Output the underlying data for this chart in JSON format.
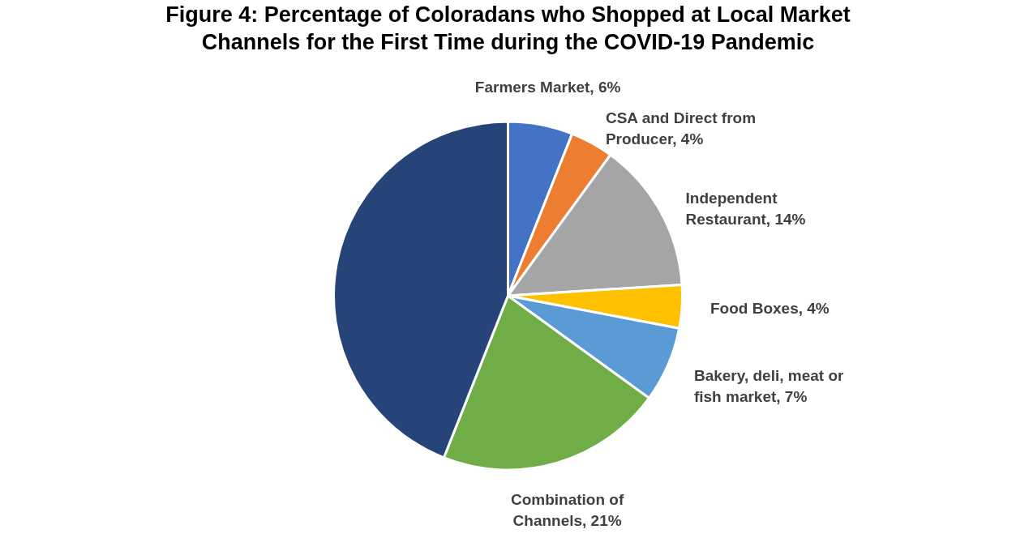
{
  "chart_data": {
    "type": "pie",
    "title": "Figure 4: Percentage of Coloradans who Shopped at Local Market Channels for the First Time during the COVID-19 Pandemic",
    "categories": [
      "Farmers Market",
      "CSA and Direct from Producer",
      "Independent Restaurant",
      "Food Boxes",
      "Bakery, deli, meat or fish market",
      "Combination of Channels",
      null
    ],
    "values": [
      6,
      4,
      14,
      4,
      7,
      21,
      44
    ],
    "value_labels": [
      "6%",
      "4%",
      "14%",
      "4%",
      "7%",
      "21%",
      null
    ],
    "colors": [
      "#4472c4",
      "#ed7d31",
      "#a5a5a5",
      "#ffc000",
      "#5b9bd5",
      "#70ad47",
      "#264478"
    ],
    "legend": false
  }
}
